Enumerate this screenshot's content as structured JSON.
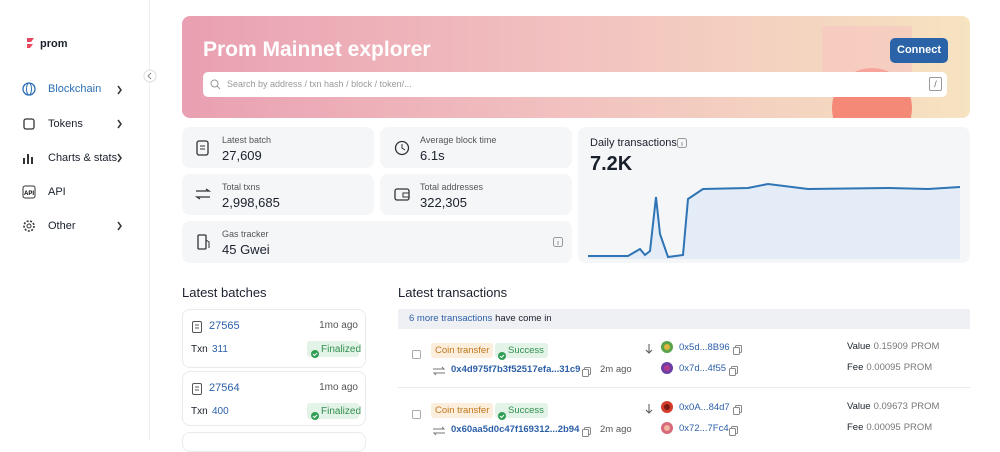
{
  "sidebar": {
    "logo": "prom",
    "nav": [
      {
        "label": "Blockchain"
      },
      {
        "label": "Tokens"
      },
      {
        "label": "Charts & stats"
      },
      {
        "label": "API"
      },
      {
        "label": "Other"
      }
    ]
  },
  "hero": {
    "title": "Prom Mainnet explorer",
    "search_placeholder": "Search by address / txn hash / block / token/...",
    "search_key": "/",
    "connect": "Connect"
  },
  "stats": [
    {
      "label": "Latest batch",
      "value": "27,609"
    },
    {
      "label": "Average block time",
      "value": "6.1s"
    },
    {
      "label": "Total txns",
      "value": "2,998,685"
    },
    {
      "label": "Total addresses",
      "value": "322,305"
    },
    {
      "label": "Gas tracker",
      "value": "45 Gwei"
    }
  ],
  "daily": {
    "title": "Daily transactions",
    "value": "7.2K"
  },
  "batches": {
    "title": "Latest batches",
    "items": [
      {
        "number": "27565",
        "age": "1mo ago",
        "txn_label": "Txn",
        "txn": "311",
        "status": "Finalized"
      },
      {
        "number": "27564",
        "age": "1mo ago",
        "txn_label": "Txn",
        "txn": "400",
        "status": "Finalized"
      }
    ]
  },
  "transactions": {
    "title": "Latest transactions",
    "notice_link": "6 more transactions",
    "notice_text": "have come in",
    "items": [
      {
        "type": "Coin transfer",
        "status": "Success",
        "hash": "0x4d975f7b3f52517efa...31c9",
        "age": "2m ago",
        "from": "0x5d...8B96",
        "to": "0x7d...4f55",
        "value_label": "Value",
        "value": "0.15909",
        "value_unit": "PROM",
        "fee_label": "Fee",
        "fee": "0.00095",
        "fee_unit": "PROM"
      },
      {
        "type": "Coin transfer",
        "status": "Success",
        "hash": "0x60aa5d0c47f169312...2b94",
        "age": "2m ago",
        "from": "0x0A...84d7",
        "to": "0x72...7Fc4",
        "value_label": "Value",
        "value": "0.09673",
        "value_unit": "PROM",
        "fee_label": "Fee",
        "fee": "0.00095",
        "fee_unit": "PROM"
      }
    ]
  }
}
